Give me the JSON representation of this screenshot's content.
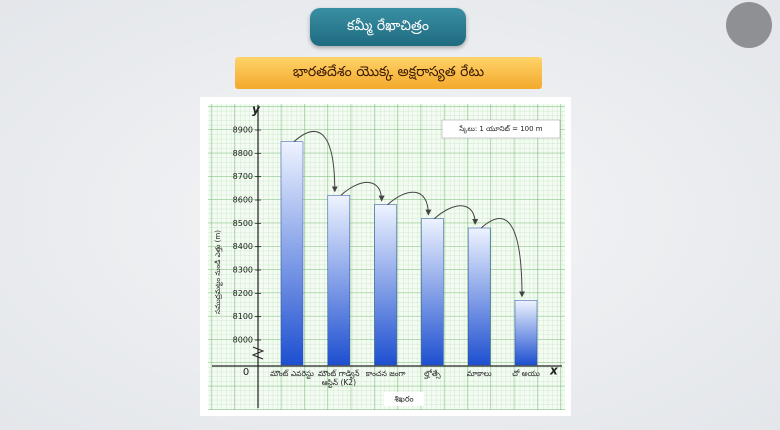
{
  "header": {
    "button": "కమ్మీ రేఖాచిత్రం",
    "banner": "భారతదేశం యొక్క అక్షరాస్యత రేటు"
  },
  "chart_data": {
    "type": "bar",
    "y_axis_letter": "y",
    "x_axis_letter": "x",
    "origin": 0,
    "y_label": "సముద్రమట్టం నుండి ఎత్తు (m)",
    "x_label": "శిఖరం",
    "scale_note": "స్కేలు: 1 యూనిట్ = 100 m",
    "categories": [
      "మౌంట్ ఎవరెస్టు",
      "మౌంట్ గాడ్విన్ ఆస్టిన్ (K2)",
      "కాంచన జంగా",
      "ల్హోత్సే",
      "మాకాలు",
      "చో అయు"
    ],
    "values": [
      8850,
      8620,
      8580,
      8520,
      8480,
      8170
    ],
    "color": "#1d4fd0",
    "ylim": [
      8000,
      8900
    ],
    "yticks": [
      8000,
      8100,
      8200,
      8300,
      8400,
      8500,
      8600,
      8700,
      8800,
      8900
    ],
    "grid": true
  }
}
